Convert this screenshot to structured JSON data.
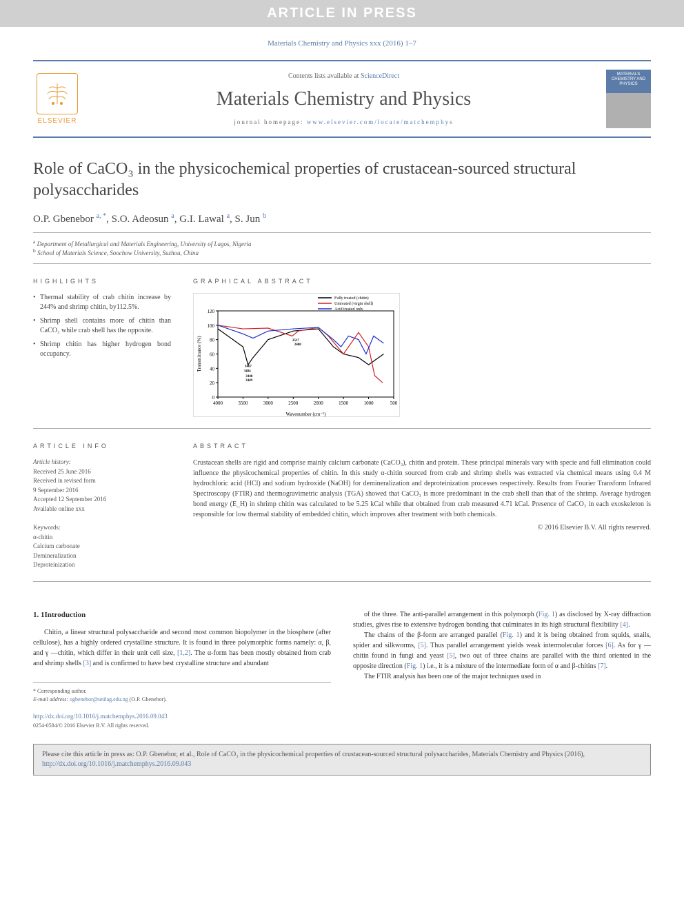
{
  "banner": "ARTICLE IN PRESS",
  "journal_ref": "Materials Chemistry and Physics xxx (2016) 1–7",
  "header": {
    "contents_prefix": "Contents lists available at ",
    "contents_link": "ScienceDirect",
    "journal_name": "Materials Chemistry and Physics",
    "homepage_prefix": "journal homepage: ",
    "homepage_link": "www.elsevier.com/locate/matchemphys",
    "elsevier_label": "ELSEVIER",
    "cover_text": "MATERIALS CHEMISTRY AND PHYSICS"
  },
  "title": "Role of CaCO₃ in the physicochemical properties of crustacean-sourced structural polysaccharides",
  "authors_html": "O.P. Gbenebor <sup>a, *</sup>, S.O. Adeosun <sup>a</sup>, G.I. Lawal <sup>a</sup>, S. Jun <sup>b</sup>",
  "affiliations": {
    "a": "Department of Metallurgical and Materials Engineering, University of Lagos, Nigeria",
    "b": "School of Materials Science, Soochow University, Suzhou, China"
  },
  "highlights": {
    "heading": "HIGHLIGHTS",
    "items": [
      "Thermal stability of crab chitin increase by 244% and shrimp chitin, by112.5%.",
      "Shrimp shell contains more of chitin than CaCO₃ while crab shell has the opposite.",
      "Shrimp chitin has higher hydrogen bond occupancy."
    ]
  },
  "graphical_abstract": {
    "heading": "GRAPHICAL ABSTRACT",
    "chart": {
      "type": "line",
      "legend": [
        "Fully treated (chitin)",
        "Untreated (virgin shell)",
        "Acid treated only"
      ],
      "legend_colors": [
        "#000000",
        "#d02020",
        "#2030d0"
      ],
      "xlabel": "Wavenumber (cm⁻¹)",
      "ylabel": "Transmittance (%)",
      "xlim": [
        4000,
        500
      ],
      "ylim": [
        0,
        120
      ],
      "ytick_step": 20,
      "xticks": [
        4000,
        3500,
        3000,
        2500,
        2000,
        1500,
        1000,
        500
      ],
      "background_color": "#ffffff",
      "axis_color": "#000000",
      "peak_labels": [
        "3484",
        "3467",
        "3448",
        "3449",
        "2517",
        "2480",
        "9187"
      ],
      "label_fontsize": 7,
      "series": [
        {
          "name": "Fully treated (chitin)",
          "color": "#000000",
          "data": [
            [
              4000,
              95
            ],
            [
              3500,
              70
            ],
            [
              3400,
              45
            ],
            [
              3300,
              55
            ],
            [
              3000,
              80
            ],
            [
              2500,
              92
            ],
            [
              2000,
              95
            ],
            [
              1700,
              70
            ],
            [
              1500,
              60
            ],
            [
              1200,
              55
            ],
            [
              1000,
              45
            ],
            [
              700,
              60
            ]
          ]
        },
        {
          "name": "Untreated (virgin shell)",
          "color": "#d02020",
          "data": [
            [
              4000,
              100
            ],
            [
              3500,
              95
            ],
            [
              3000,
              96
            ],
            [
              2520,
              85
            ],
            [
              2400,
              92
            ],
            [
              2000,
              97
            ],
            [
              1800,
              85
            ],
            [
              1500,
              60
            ],
            [
              1200,
              90
            ],
            [
              1000,
              70
            ],
            [
              880,
              30
            ],
            [
              720,
              20
            ]
          ]
        },
        {
          "name": "Acid treated only",
          "color": "#2030d0",
          "data": [
            [
              4000,
              100
            ],
            [
              3500,
              88
            ],
            [
              3300,
              82
            ],
            [
              3000,
              92
            ],
            [
              2500,
              95
            ],
            [
              2000,
              97
            ],
            [
              1700,
              80
            ],
            [
              1550,
              70
            ],
            [
              1400,
              85
            ],
            [
              1200,
              80
            ],
            [
              1050,
              60
            ],
            [
              900,
              85
            ],
            [
              700,
              75
            ]
          ]
        }
      ]
    }
  },
  "article_info": {
    "heading": "ARTICLE INFO",
    "history_label": "Article history:",
    "history": [
      "Received 25 June 2016",
      "Received in revised form",
      "9 September 2016",
      "Accepted 12 September 2016",
      "Available online xxx"
    ],
    "keywords_label": "Keywords:",
    "keywords": [
      "α-chitin",
      "Calcium carbonate",
      "Demineralization",
      "Deproteinization"
    ]
  },
  "abstract": {
    "heading": "ABSTRACT",
    "text": "Crustacean shells are rigid and comprise mainly calcium carbonate (CaCO₃), chitin and protein. These principal minerals vary with specie and full elimination could influence the physicochemical properties of chitin. In this study α-chitin sourced from crab and shrimp shells was extracted via chemical means using 0.4 M hydrochloric acid (HCl) and sodium hydroxide (NaOH) for demineralization and deproteinization processes respectively. Results from Fourier Transform Infrared Spectroscopy (FTIR) and thermogravimetric analysis (TGA) showed that CaCO₃ is more predominant in the crab shell than that of the shrimp. Average hydrogen bond energy (E_H) in shrimp chitin was calculated to be 5.25 kCal while that obtained from crab measured 4.71 kCal. Presence of CaCO₃ in each exoskeleton is responsible for low thermal stability of embedded chitin, which improves after treatment with both chemicals.",
    "copyright": "© 2016 Elsevier B.V. All rights reserved."
  },
  "introduction": {
    "heading": "1. 1Introduction",
    "col1_p1": "Chitin, a linear structural polysaccharide and second most common biopolymer in the biosphere (after cellulose), has a highly ordered crystalline structure. It is found in three polymorphic forms namely: α, β, and γ —chitin, which differ in their unit cell size, [1,2]. The α-form has been mostly obtained from crab and shrimp shells [3] and is confirmed to have best crystalline structure and abundant",
    "col2_p1": "of the three. The anti-parallel arrangement in this polymorph (Fig. 1) as disclosed by X-ray diffraction studies, gives rise to extensive hydrogen bonding that culminates in its high structural flexibility [4].",
    "col2_p2": "The chains of the β-form are arranged parallel (Fig. 1) and it is being obtained from squids, snails, spider and silkworms, [5]. Thus parallel arrangement yields weak intermolecular forces [6]. As for γ —chitin found in fungi and yeast [5], two out of three chains are parallel with the third oriented in the opposite direction (Fig. 1) i.e., it is a mixture of the intermediate form of α and β-chitins [7].",
    "col2_p3": "The FTIR analysis has been one of the major techniques used in"
  },
  "corresponding": {
    "star": "* Corresponding author.",
    "email_label": "E-mail address: ",
    "email": "ogbenebor@unilag.edu.ng",
    "email_suffix": " (O.P. Gbenebor)."
  },
  "doi": {
    "url": "http://dx.doi.org/10.1016/j.matchemphys.2016.09.043",
    "issn": "0254-0584/© 2016 Elsevier B.V. All rights reserved."
  },
  "cite_box": "Please cite this article in press as: O.P. Gbenebor, et al., Role of CaCO₃ in the physicochemical properties of crustacean-sourced structural polysaccharides, Materials Chemistry and Physics (2016), http://dx.doi.org/10.1016/j.matchemphys.2016.09.043",
  "colors": {
    "accent": "#5b7ca8",
    "orange": "#e89830",
    "banner_bg": "#d0d0d0"
  }
}
